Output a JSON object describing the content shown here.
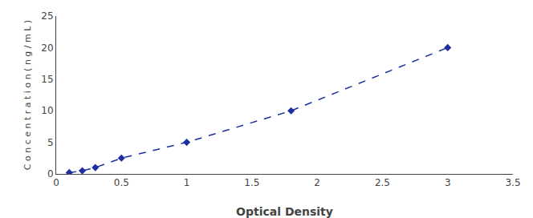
{
  "chart_data": {
    "type": "line",
    "x": [
      0.1,
      0.2,
      0.3,
      0.5,
      1.0,
      1.8,
      3.0
    ],
    "values": [
      0.2,
      0.5,
      1.0,
      2.5,
      5.0,
      10.0,
      20.0
    ],
    "xlabel": "Optical Density",
    "ylabel": "C o n c e n t r a t i o n ( n g / m L )",
    "xlim": [
      0,
      3.5
    ],
    "ylim": [
      0,
      25
    ],
    "xticks": [
      0,
      0.5,
      1.0,
      1.5,
      2.0,
      2.5,
      3.0,
      3.5
    ],
    "yticks": [
      0,
      5,
      10,
      15,
      20,
      25
    ],
    "color": "#1c2fa0",
    "marker": "diamond",
    "line_style": "dashed",
    "grid": false
  }
}
